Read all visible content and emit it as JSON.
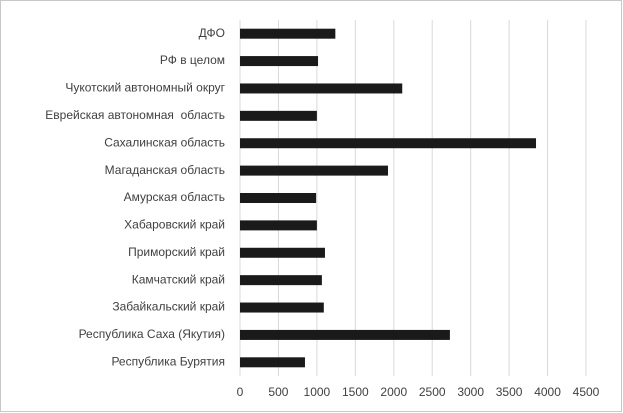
{
  "chart_data": {
    "type": "barh",
    "categories": [
      "ДФО",
      "РФ в целом",
      "Чукотский автономный округ",
      "Еврейская автономная  область",
      "Сахалинская область",
      "Магаданская область",
      "Амурская область",
      "Хабаровский край",
      "Приморский край",
      "Камчатский край",
      "Забайкальский край",
      "Республика Саха (Якутия)",
      "Республика Бурятия"
    ],
    "values": [
      1240,
      1015,
      2110,
      1000,
      3850,
      1925,
      990,
      1000,
      1105,
      1065,
      1090,
      2730,
      845
    ],
    "color": "#1a1a1a",
    "xlim": [
      0,
      4500
    ],
    "xticks": [
      0,
      500,
      1000,
      1500,
      2000,
      2500,
      3000,
      3500,
      4000,
      4500
    ],
    "grid": true
  }
}
